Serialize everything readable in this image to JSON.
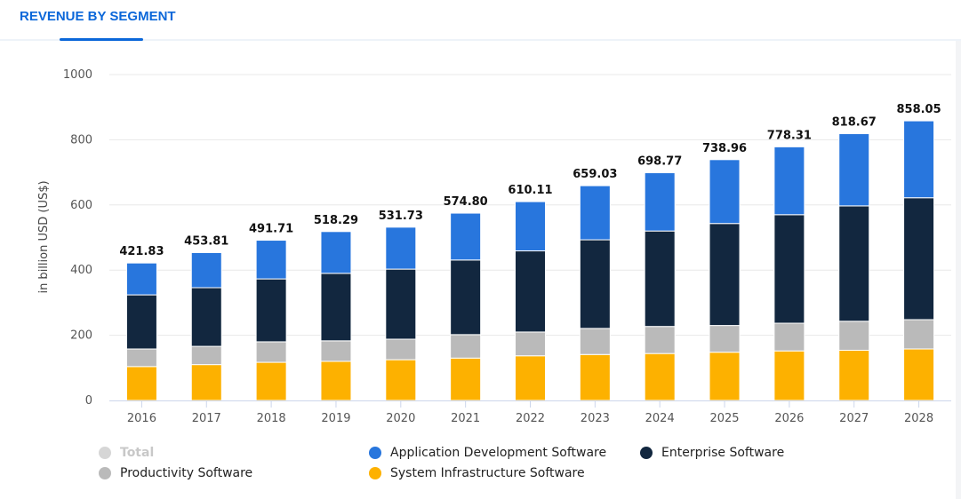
{
  "tab": {
    "title": "REVENUE BY SEGMENT"
  },
  "chart_data": {
    "type": "bar",
    "stacked": true,
    "title": "",
    "xlabel": "",
    "ylabel": "in billion USD (US$)",
    "ylim": [
      0,
      1000
    ],
    "yticks": [
      0,
      200,
      400,
      600,
      800,
      1000
    ],
    "grid": true,
    "legend_position": "bottom",
    "categories": [
      "2016",
      "2017",
      "2018",
      "2019",
      "2020",
      "2021",
      "2022",
      "2023",
      "2024",
      "2025",
      "2026",
      "2027",
      "2028"
    ],
    "series": [
      {
        "name": "System Infrastructure Software",
        "color": "#fdb100",
        "values": [
          104,
          110,
          117,
          120,
          125,
          130,
          137,
          141,
          144,
          148,
          152,
          154,
          158
        ]
      },
      {
        "name": "Productivity Software",
        "color": "#bababa",
        "values": [
          54,
          56,
          63,
          63,
          63,
          72,
          73,
          80,
          83,
          82,
          85,
          89,
          90
        ]
      },
      {
        "name": "Enterprise Software",
        "color": "#12273f",
        "values": [
          166,
          180,
          193,
          207,
          215,
          229,
          249,
          272,
          293,
          313,
          333,
          354,
          374
        ]
      },
      {
        "name": "Application Development Software",
        "color": "#2876dd",
        "values": [
          97.83,
          107.81,
          118.71,
          128.29,
          128.73,
          143.8,
          151.11,
          166.03,
          178.77,
          195.96,
          208.31,
          221.67,
          236.05
        ]
      }
    ],
    "totals": [
      "421.83",
      "453.81",
      "491.71",
      "518.29",
      "531.73",
      "574.80",
      "610.11",
      "659.03",
      "698.77",
      "738.96",
      "778.31",
      "818.67",
      "858.05"
    ],
    "total_series": {
      "name": "Total",
      "color": "#d6d6d6",
      "visible": false
    }
  },
  "legend": [
    {
      "name": "Total",
      "color": "#d6d6d6",
      "disabled": true
    },
    {
      "name": "Application Development Software",
      "color": "#2876dd",
      "disabled": false
    },
    {
      "name": "Enterprise Software",
      "color": "#12273f",
      "disabled": false
    },
    {
      "name": "Productivity Software",
      "color": "#bababa",
      "disabled": false
    },
    {
      "name": "System Infrastructure Software",
      "color": "#fdb100",
      "disabled": false
    }
  ]
}
